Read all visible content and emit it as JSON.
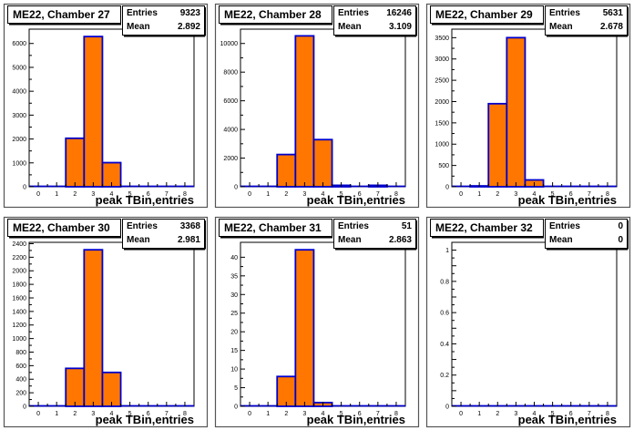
{
  "chart_data": [
    {
      "type": "bar",
      "title": "ME22, Chamber 27",
      "xlabel": "peak TBin,entries",
      "stats": [
        {
          "label": "Entries",
          "value": "9323"
        },
        {
          "label": "Mean",
          "value": "2.892"
        }
      ],
      "categories": [
        "0",
        "1",
        "2",
        "3",
        "4",
        "5",
        "6",
        "7",
        "8"
      ],
      "xlim": [
        -0.5,
        8.5
      ],
      "ylim": [
        0,
        6600
      ],
      "yticks": [
        0,
        1000,
        2000,
        3000,
        4000,
        5000,
        6000
      ],
      "values": [
        0,
        0,
        2030,
        6290,
        1010,
        0,
        0,
        0,
        0
      ]
    },
    {
      "type": "bar",
      "title": "ME22, Chamber 28",
      "xlabel": "peak TBin,entries",
      "stats": [
        {
          "label": "Entries",
          "value": "16246"
        },
        {
          "label": "Mean",
          "value": "3.109"
        }
      ],
      "categories": [
        "0",
        "1",
        "2",
        "3",
        "4",
        "5",
        "6",
        "7",
        "8"
      ],
      "xlim": [
        -0.5,
        8.5
      ],
      "ylim": [
        0,
        11000
      ],
      "yticks": [
        0,
        2000,
        4000,
        6000,
        8000,
        10000
      ],
      "values": [
        0,
        0,
        2250,
        10530,
        3290,
        100,
        0,
        100,
        0
      ]
    },
    {
      "type": "bar",
      "title": "ME22, Chamber 29",
      "xlabel": "peak TBin,entries",
      "stats": [
        {
          "label": "Entries",
          "value": "5631"
        },
        {
          "label": "Mean",
          "value": "2.678"
        }
      ],
      "categories": [
        "0",
        "1",
        "2",
        "3",
        "4",
        "5",
        "6",
        "7",
        "8"
      ],
      "xlim": [
        -0.5,
        8.5
      ],
      "ylim": [
        0,
        3700
      ],
      "yticks": [
        0,
        500,
        1000,
        1500,
        2000,
        2500,
        3000,
        3500
      ],
      "values": [
        0,
        20,
        1950,
        3500,
        160,
        0,
        0,
        0,
        0
      ]
    },
    {
      "type": "bar",
      "title": "ME22, Chamber 30",
      "xlabel": "peak TBin,entries",
      "stats": [
        {
          "label": "Entries",
          "value": "3368"
        },
        {
          "label": "Mean",
          "value": "2.981"
        }
      ],
      "categories": [
        "0",
        "1",
        "2",
        "3",
        "4",
        "5",
        "6",
        "7",
        "8"
      ],
      "xlim": [
        -0.5,
        8.5
      ],
      "ylim": [
        0,
        2420
      ],
      "yticks": [
        0,
        200,
        400,
        600,
        800,
        1000,
        1200,
        1400,
        1600,
        1800,
        2000,
        2200,
        2400
      ],
      "values": [
        0,
        0,
        560,
        2310,
        500,
        0,
        0,
        0,
        0
      ]
    },
    {
      "type": "bar",
      "title": "ME22, Chamber 31",
      "xlabel": "peak TBin,entries",
      "stats": [
        {
          "label": "Entries",
          "value": "51"
        },
        {
          "label": "Mean",
          "value": "2.863"
        }
      ],
      "categories": [
        "0",
        "1",
        "2",
        "3",
        "4",
        "5",
        "6",
        "7",
        "8"
      ],
      "xlim": [
        -0.5,
        8.5
      ],
      "ylim": [
        0,
        44
      ],
      "yticks": [
        0,
        5,
        10,
        15,
        20,
        25,
        30,
        35,
        40
      ],
      "values": [
        0,
        0,
        8,
        42,
        1,
        0,
        0,
        0,
        0
      ]
    },
    {
      "type": "bar",
      "title": "ME22, Chamber 32",
      "xlabel": "peak TBin,entries",
      "stats": [
        {
          "label": "Entries",
          "value": "0"
        },
        {
          "label": "Mean",
          "value": "0"
        }
      ],
      "categories": [
        "0",
        "1",
        "2",
        "3",
        "4",
        "5",
        "6",
        "7",
        "8"
      ],
      "xlim": [
        -0.5,
        8.5
      ],
      "ylim": [
        0,
        1.05
      ],
      "yticks": [
        0,
        0.1,
        0.2,
        0.3,
        0.4,
        0.5,
        0.6,
        0.7,
        0.8,
        0.9,
        1
      ],
      "ytick_labels": [
        "0",
        "",
        "0.2",
        "",
        "0.4",
        "",
        "0.6",
        "",
        "0.8",
        "",
        "1"
      ],
      "values": [
        0,
        0,
        0,
        0,
        0,
        0,
        0,
        0,
        0
      ]
    }
  ],
  "colors": {
    "fill": "#ff7700",
    "line": "#0000cc",
    "pad_frame": "#555555",
    "title_box": "#ffffff"
  }
}
